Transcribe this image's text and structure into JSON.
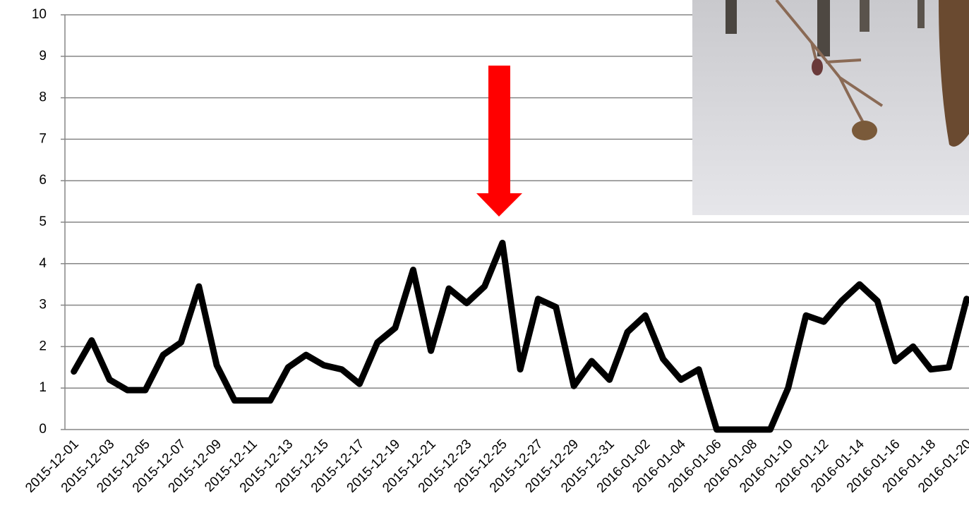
{
  "chart_data": {
    "type": "line",
    "categories": [
      "2015-12-01",
      null,
      "2015-12-03",
      null,
      "2015-12-05",
      null,
      "2015-12-07",
      null,
      "2015-12-09",
      null,
      "2015-12-11",
      null,
      "2015-12-13",
      null,
      "2015-12-15",
      null,
      "2015-12-17",
      null,
      "2015-12-19",
      null,
      "2015-12-21",
      null,
      "2015-12-23",
      null,
      "2015-12-25",
      null,
      "2015-12-27",
      null,
      "2015-12-29",
      null,
      "2015-12-31",
      null,
      "2016-01-02",
      null,
      "2016-01-04",
      null,
      "2016-01-06",
      null,
      "2016-01-08",
      null,
      "2016-01-10",
      null,
      "2016-01-12",
      null,
      "2016-01-14",
      null,
      "2016-01-16",
      null,
      "2016-01-18",
      null,
      "2016-01-20"
    ],
    "values": [
      1.4,
      2.15,
      1.2,
      0.95,
      0.95,
      1.8,
      2.1,
      3.45,
      1.55,
      0.7,
      0.7,
      0.7,
      1.5,
      1.8,
      1.55,
      1.45,
      1.1,
      2.1,
      2.45,
      3.85,
      1.9,
      3.4,
      3.05,
      3.45,
      4.5,
      1.45,
      3.15,
      2.95,
      1.05,
      1.65,
      1.2,
      2.35,
      2.75,
      1.7,
      1.2,
      1.45,
      0,
      0,
      0,
      0,
      1.0,
      2.75,
      2.6,
      3.1,
      3.5,
      3.1,
      1.65,
      2.0,
      1.45,
      1.5,
      3.15
    ],
    "color": "#000000",
    "ylim": [
      0,
      10
    ],
    "yticks": [
      0,
      1,
      2,
      3,
      4,
      5,
      6,
      7,
      8,
      9,
      10
    ],
    "grid": true
  }
}
